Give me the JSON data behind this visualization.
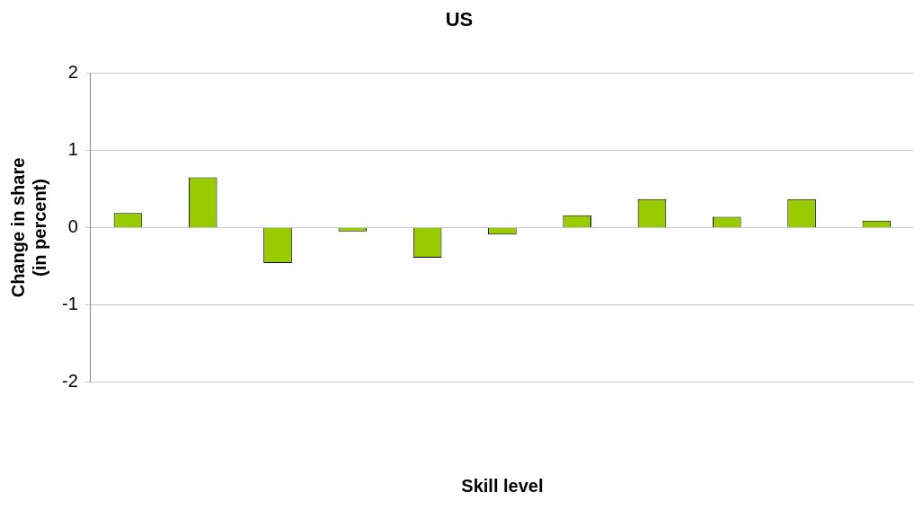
{
  "chart_data": {
    "type": "bar",
    "title": "US",
    "xlabel": "Skill level",
    "ylabel": "Change in share (in percent)",
    "categories": [
      null,
      null,
      null,
      null,
      null,
      null,
      null,
      null,
      null,
      null,
      null
    ],
    "values": [
      0.19,
      0.65,
      -0.46,
      -0.05,
      -0.39,
      -0.09,
      0.16,
      0.37,
      0.14,
      0.37,
      0.09
    ],
    "color": "#99cc00",
    "ylim": [
      -2,
      2
    ],
    "yticks": [
      -2,
      -1,
      0,
      1,
      2
    ],
    "grid": "y",
    "legend": false
  }
}
